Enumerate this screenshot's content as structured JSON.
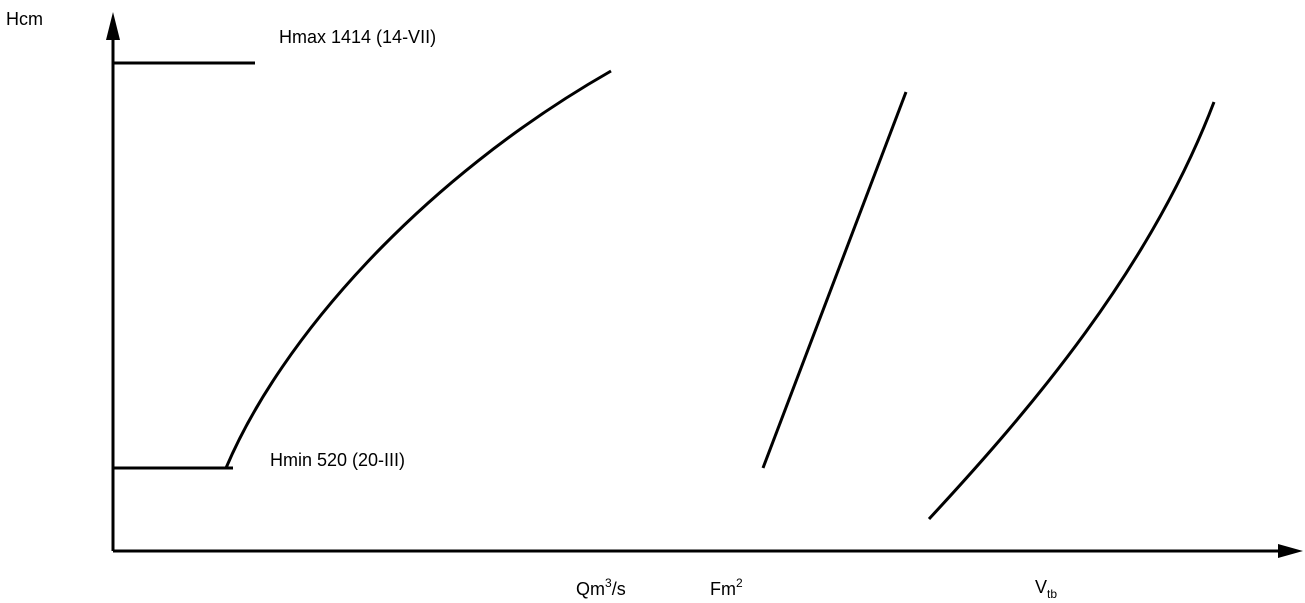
{
  "axis": {
    "y_label": "Hcm",
    "x_labels": {
      "q": {
        "base": "Qm",
        "sup": "3",
        "suffix": "/s"
      },
      "f": {
        "base": "Fm",
        "sup": "2"
      },
      "v": {
        "base": "V",
        "sub": "tb"
      }
    }
  },
  "levels": {
    "max": {
      "label": "Hmax 1414 (14-VII)",
      "value": 1414
    },
    "min": {
      "label": "Hmin 520 (20-III)",
      "value": 520
    }
  },
  "curves": [
    "H-Q",
    "H-F",
    "H-V"
  ],
  "colors": {
    "line": "#000000",
    "background": "#ffffff"
  }
}
